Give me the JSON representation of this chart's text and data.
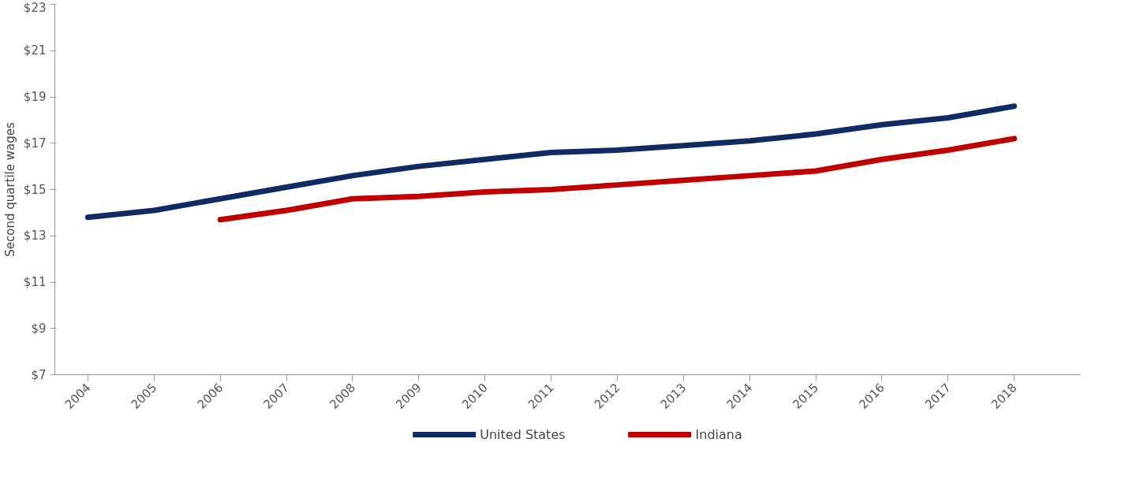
{
  "chart_data": {
    "type": "line",
    "ylabel": "Second quartile wages",
    "categories": [
      "2004",
      "2005",
      "2006",
      "2007",
      "2008",
      "2009",
      "2010",
      "2011",
      "2012",
      "2013",
      "2014",
      "2015",
      "2016",
      "2017",
      "2018"
    ],
    "series": [
      {
        "name": "United States",
        "color": "#102a63",
        "values": [
          13.8,
          14.1,
          14.6,
          15.1,
          15.6,
          16.0,
          16.3,
          16.6,
          16.7,
          16.9,
          17.1,
          17.4,
          17.8,
          18.1,
          18.6
        ]
      },
      {
        "name": "Indiana",
        "color": "#c00000",
        "values": [
          null,
          null,
          13.7,
          14.1,
          14.6,
          14.7,
          14.9,
          15.0,
          15.2,
          15.4,
          15.6,
          15.8,
          16.3,
          16.7,
          17.2
        ]
      }
    ],
    "ylim": [
      7,
      23
    ],
    "yticks": [
      {
        "value": 7,
        "label": "$7"
      },
      {
        "value": 9,
        "label": "$9"
      },
      {
        "value": 11,
        "label": "$11"
      },
      {
        "value": 13,
        "label": "$13"
      },
      {
        "value": 15,
        "label": "$15"
      },
      {
        "value": 17,
        "label": "$17"
      },
      {
        "value": 19,
        "label": "$19"
      },
      {
        "value": 21,
        "label": "$21"
      },
      {
        "value": 23,
        "label": "$23"
      }
    ],
    "grid": false,
    "legend": "bottom",
    "marker": "none",
    "line_style": "solid"
  }
}
